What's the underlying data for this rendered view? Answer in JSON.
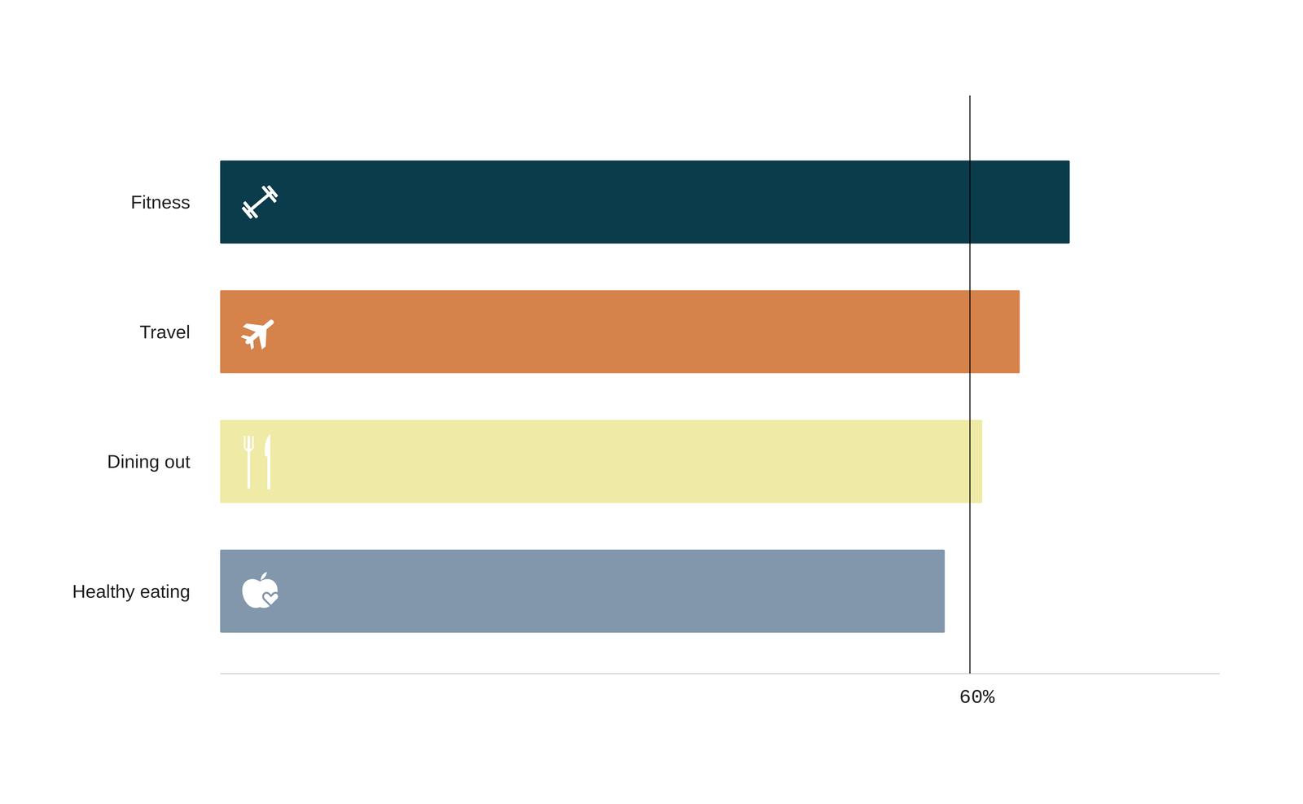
{
  "chart_data": {
    "type": "bar",
    "orientation": "horizontal",
    "categories": [
      "Fitness",
      "Travel",
      "Dining out",
      "Healthy eating"
    ],
    "values": [
      68,
      64,
      61,
      58
    ],
    "colors": [
      "#0b3c4b",
      "#d5824b",
      "#efeaa5",
      "#8297ab"
    ],
    "xlim": [
      0,
      80
    ],
    "xticks": [
      {
        "value": 60,
        "label": "60%"
      }
    ]
  }
}
